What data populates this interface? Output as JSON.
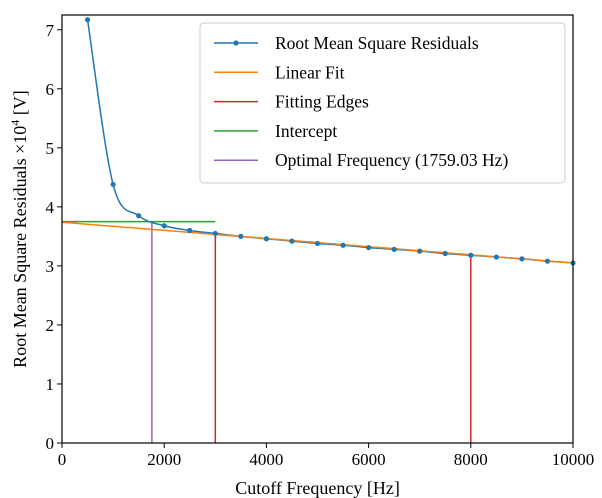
{
  "chart_data": {
    "type": "line",
    "title": "",
    "xlabel": "Cutoff Frequency [Hz]",
    "ylabel_main": "Root Mean Square Residuals ×10",
    "ylabel_exp": "4",
    "ylabel_unit": " [V]",
    "xlim": [
      0,
      10000
    ],
    "ylim": [
      0,
      7.25
    ],
    "x_ticks": [
      0,
      2000,
      4000,
      6000,
      8000,
      10000
    ],
    "y_ticks": [
      0,
      1,
      2,
      3,
      4,
      5,
      6,
      7
    ],
    "grid": false,
    "legend_position": "top-right",
    "series": [
      {
        "name": "Root Mean Square Residuals",
        "color": "#1f77b4",
        "marker": "circle",
        "x": [
          500,
          1000,
          1500,
          2000,
          2500,
          3000,
          3500,
          4000,
          4500,
          5000,
          5500,
          6000,
          6500,
          7000,
          7500,
          8000,
          8500,
          9000,
          9500,
          10000
        ],
        "y": [
          7.17,
          4.38,
          3.85,
          3.68,
          3.6,
          3.55,
          3.5,
          3.46,
          3.42,
          3.38,
          3.35,
          3.31,
          3.28,
          3.25,
          3.21,
          3.18,
          3.15,
          3.12,
          3.08,
          3.05
        ]
      },
      {
        "name": "Linear Fit",
        "color": "#ff7f0e",
        "type": "line",
        "x": [
          0,
          10000
        ],
        "y": [
          3.74,
          3.05
        ]
      },
      {
        "name": "Fitting Edges",
        "color": "#d62728",
        "type": "vlines",
        "x": [
          3000,
          8000
        ],
        "y_top": [
          3.54,
          3.19
        ]
      },
      {
        "name": "Intercept",
        "color": "#2ca02c",
        "type": "hline",
        "x": [
          0,
          3000
        ],
        "y": 3.75
      },
      {
        "name": "Optimal Frequency (1759.03 Hz)",
        "color": "#9467bd",
        "type": "vline",
        "x": 1759.03,
        "y_top": 3.75
      }
    ]
  }
}
